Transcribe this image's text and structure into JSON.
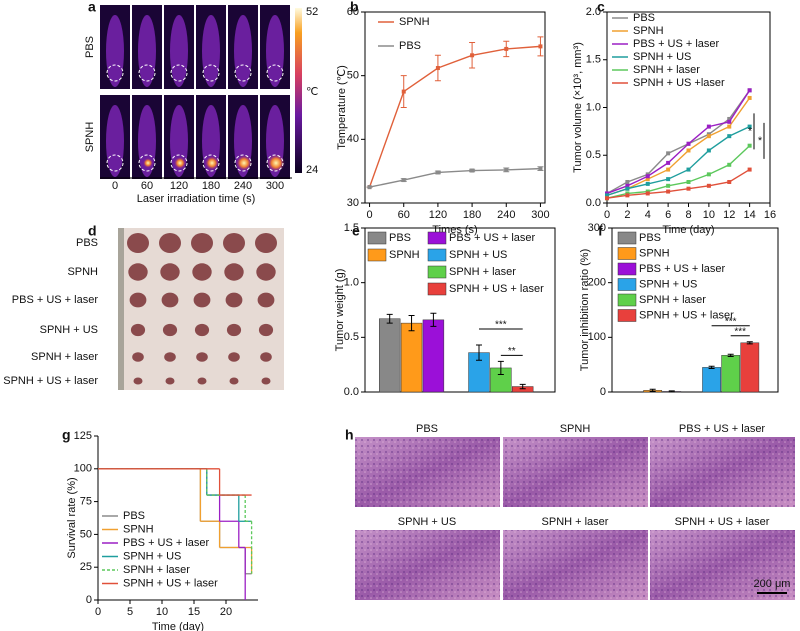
{
  "panel_labels": [
    "a",
    "b",
    "c",
    "d",
    "e",
    "f",
    "g",
    "h"
  ],
  "thermal": {
    "rows": [
      "PBS",
      "SPNH"
    ],
    "colorbar": [
      "52",
      "℃",
      "24"
    ],
    "times": [
      "0",
      "60",
      "120",
      "180",
      "240",
      "300"
    ],
    "xlabel": "Laser irradiation time (s)"
  },
  "photo": {
    "rows": [
      "PBS",
      "SPNH",
      "PBS + US + laser",
      "SPNH + US",
      "SPNH + laser",
      "SPNH + US + laser"
    ]
  },
  "histology": {
    "labels": [
      "PBS",
      "SPNH",
      "PBS + US + laser",
      "SPNH + US",
      "SPNH + laser",
      "SPNH + US + laser"
    ],
    "scale": "200 μm"
  },
  "chart_data": [
    {
      "type": "line",
      "xlabel": "Times (s)",
      "ylabel": "Temperature (℃)",
      "x": [
        0,
        60,
        120,
        180,
        240,
        300
      ],
      "xlim": [
        -8,
        308
      ],
      "xticks": [
        0,
        60,
        120,
        180,
        240,
        300
      ],
      "ylim": [
        30,
        60
      ],
      "yticks": [
        30,
        40,
        50,
        60
      ],
      "legend": "upper left",
      "series": [
        {
          "name": "SPNH",
          "color": "#e0603a",
          "values": [
            32.5,
            47.5,
            51.2,
            53.2,
            54.2,
            54.6
          ],
          "errors": [
            0,
            2.5,
            2,
            2,
            1.2,
            1.5
          ]
        },
        {
          "name": "PBS",
          "color": "#8a8a8a",
          "values": [
            32.5,
            33.6,
            34.8,
            35.1,
            35.2,
            35.4
          ],
          "errors": [
            0,
            0.2,
            0.2,
            0.2,
            0.3,
            0.3
          ]
        }
      ]
    },
    {
      "type": "line",
      "xlabel": "Time (day)",
      "ylabel": "Tumor volume (×10³, mm³)",
      "x": [
        0,
        2,
        4,
        6,
        8,
        10,
        12,
        14
      ],
      "xlim": [
        0,
        16
      ],
      "xticks": [
        0,
        2,
        4,
        6,
        8,
        10,
        12,
        14,
        16
      ],
      "ylim": [
        0,
        2
      ],
      "yticks": [
        {
          "value": 0,
          "label": "0.0"
        },
        0.5,
        {
          "value": 1,
          "label": "1.0"
        },
        1.5,
        {
          "value": 2,
          "label": "2.0"
        }
      ],
      "legend": "upper left",
      "annotations": [
        "*",
        "*"
      ],
      "series": [
        {
          "name": "PBS",
          "color": "#8a8a8a",
          "values": [
            0.1,
            0.22,
            0.3,
            0.52,
            0.62,
            0.72,
            0.88,
            1.18
          ]
        },
        {
          "name": "SPNH",
          "color": "#f0a030",
          "values": [
            0.08,
            0.15,
            0.25,
            0.35,
            0.55,
            0.7,
            0.8,
            1.1
          ]
        },
        {
          "name": "PBS + US + laser",
          "color": "#9b1fc4",
          "values": [
            0.1,
            0.18,
            0.28,
            0.42,
            0.62,
            0.8,
            0.85,
            1.18
          ]
        },
        {
          "name": "SPNH + US",
          "color": "#1f9e9e",
          "values": [
            0.08,
            0.15,
            0.2,
            0.25,
            0.35,
            0.55,
            0.7,
            0.8
          ]
        },
        {
          "name": "SPNH + laser",
          "color": "#5cc85c",
          "values": [
            0.05,
            0.1,
            0.12,
            0.18,
            0.22,
            0.3,
            0.4,
            0.6
          ]
        },
        {
          "name": "SPNH + US +laser",
          "color": "#e0503a",
          "values": [
            0.05,
            0.08,
            0.1,
            0.12,
            0.15,
            0.18,
            0.22,
            0.35
          ]
        }
      ]
    },
    {
      "type": "bar",
      "ylabel": "Tumor weight (g)",
      "ylim": [
        0,
        1.5
      ],
      "yticks": [
        {
          "value": 0,
          "label": "0.0"
        },
        0.5,
        {
          "value": 1,
          "label": "1.0"
        },
        1.5
      ],
      "legend": "upper left",
      "categories": [
        "PBS",
        "SPNH",
        "PBS + US + laser",
        "SPNH + US",
        "SPNH + laser",
        "SPNH + US + laser"
      ],
      "colors": [
        "#888888",
        "#ff9a1a",
        "#9b10d8",
        "#2aa3e8",
        "#5fd04a",
        "#e8403c"
      ],
      "values": [
        0.67,
        0.63,
        0.66,
        0.36,
        0.22,
        0.05
      ],
      "errors": [
        0.04,
        0.07,
        0.06,
        0.07,
        0.06,
        0.02
      ],
      "annotations": [
        "***",
        "**"
      ]
    },
    {
      "type": "bar",
      "ylabel": "Tumor inhibition ratio (%)",
      "ylim": [
        0,
        300
      ],
      "yticks": [
        0,
        100,
        200,
        300
      ],
      "legend": "upper left",
      "categories": [
        "PBS",
        "SPNH",
        "PBS + US + laser",
        "SPNH + US",
        "SPNH + laser",
        "SPNH + US + laser"
      ],
      "colors": [
        "#888888",
        "#ff9a1a",
        "#9b10d8",
        "#2aa3e8",
        "#5fd04a",
        "#e8403c"
      ],
      "values": [
        0,
        3,
        1,
        45,
        67,
        90
      ],
      "errors": [
        0,
        2,
        1,
        2,
        2,
        2
      ],
      "annotations": [
        "***",
        "***"
      ]
    },
    {
      "type": "step",
      "xlabel": "Time (day)",
      "ylabel": "Survival rate (%)",
      "xlim": [
        0,
        25
      ],
      "xticks": [
        0,
        5,
        10,
        15,
        20
      ],
      "ylim": [
        0,
        125
      ],
      "yticks": [
        0,
        25,
        50,
        75,
        100,
        125
      ],
      "legend": "lower left",
      "series": [
        {
          "name": "PBS",
          "color": "#8a8a8a",
          "x": [
            0,
            16,
            19,
            23,
            24
          ],
          "values": [
            100,
            60,
            40,
            20,
            20
          ]
        },
        {
          "name": "SPNH",
          "color": "#f0a030",
          "x": [
            0,
            16,
            19,
            23,
            24
          ],
          "values": [
            100,
            60,
            40,
            40,
            20
          ]
        },
        {
          "name": "PBS + US + laser",
          "color": "#9b1fc4",
          "x": [
            0,
            17,
            19,
            22,
            23
          ],
          "values": [
            100,
            80,
            60,
            40,
            0
          ]
        },
        {
          "name": "SPNH + US",
          "color": "#1f9e9e",
          "x": [
            0,
            17,
            22,
            24
          ],
          "values": [
            100,
            80,
            60,
            60
          ]
        },
        {
          "name": "SPNH + laser",
          "color": "#5cc85c",
          "x": [
            0,
            17,
            23,
            24
          ],
          "values": [
            100,
            80,
            60,
            20
          ],
          "dash": true
        },
        {
          "name": "SPNH + US + laser",
          "color": "#e0503a",
          "x": [
            0,
            19,
            24
          ],
          "values": [
            100,
            80,
            80
          ]
        }
      ]
    }
  ]
}
